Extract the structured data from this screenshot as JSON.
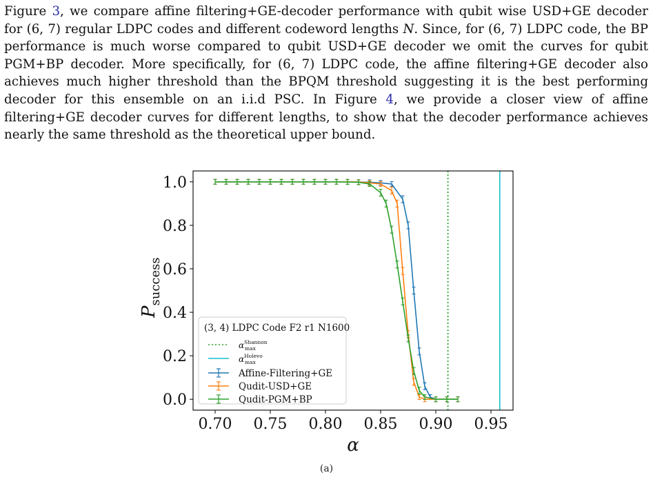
{
  "paragraph": {
    "p1": "Figure ",
    "ref1": "3",
    "p2": ", we compare affine filtering+GE-decoder performance with qubit wise USD+GE decoder for (6, 7) regular LDPC codes and different codeword lengths ",
    "N": "N",
    "p3": ". Since, for (6, 7) LDPC code, the BP performance is much worse compared to qubit USD+GE decoder we omit the curves for qubit PGM+BP decoder. More specifically, for (6, 7) LDPC code, the affine filtering+GE decoder also achieves much higher threshold than the BPQM threshold suggesting it is the best performing decoder for this ensemble on an i.i.d PSC. In Figure ",
    "ref2": "4",
    "p4": ", we provide a closer view of affine filtering+GE decoder curves for different lengths, to show that the decoder performance achieves nearly the same threshold as the theoretical upper bound."
  },
  "chart_data": {
    "type": "line",
    "xlabel": "α",
    "ylabel": "P",
    "ylabel_sub": "success",
    "xlim": [
      0.68,
      0.97
    ],
    "ylim": [
      -0.05,
      1.05
    ],
    "xticks": [
      0.7,
      0.75,
      0.8,
      0.85,
      0.9,
      0.95
    ],
    "xtick_labels": [
      "0.70",
      "0.75",
      "0.80",
      "0.85",
      "0.90",
      "0.95"
    ],
    "yticks": [
      0.0,
      0.2,
      0.4,
      0.6,
      0.8,
      1.0
    ],
    "ytick_labels": [
      "0.0",
      "0.2",
      "0.4",
      "0.6",
      "0.8",
      "1.0"
    ],
    "grid": false,
    "legend_title": "(3, 4) LDPC Code F2 r1 N1600",
    "legend_position": "lower-left",
    "vlines": [
      {
        "name": "α",
        "sup": "Shannon",
        "sub": "max",
        "x": 0.911,
        "color": "#2ca02c",
        "style": "dotted"
      },
      {
        "name": "α",
        "sup": "Holevo",
        "sub": "max",
        "x": 0.958,
        "color": "#17becf",
        "style": "solid"
      }
    ],
    "series": [
      {
        "name": "Affine-Filtering+GE",
        "color": "#1f77b4",
        "x": [
          0.7,
          0.71,
          0.72,
          0.73,
          0.74,
          0.75,
          0.76,
          0.77,
          0.78,
          0.79,
          0.8,
          0.81,
          0.82,
          0.83,
          0.84,
          0.85,
          0.86,
          0.87,
          0.875,
          0.88,
          0.885,
          0.89,
          0.895,
          0.9,
          0.91,
          0.92
        ],
        "y": [
          1.0,
          1.0,
          1.0,
          1.0,
          1.0,
          1.0,
          1.0,
          1.0,
          1.0,
          1.0,
          1.0,
          1.0,
          1.0,
          0.999,
          0.998,
          0.995,
          0.99,
          0.92,
          0.8,
          0.5,
          0.22,
          0.06,
          0.01,
          0.0,
          0.0,
          0.0
        ]
      },
      {
        "name": "Qudit-USD+GE",
        "color": "#ff7f0e",
        "x": [
          0.7,
          0.71,
          0.72,
          0.73,
          0.74,
          0.75,
          0.76,
          0.77,
          0.78,
          0.79,
          0.8,
          0.81,
          0.82,
          0.83,
          0.84,
          0.85,
          0.86,
          0.865,
          0.87,
          0.875,
          0.88,
          0.885,
          0.89,
          0.9,
          0.91,
          0.92
        ],
        "y": [
          1.0,
          1.0,
          1.0,
          1.0,
          1.0,
          1.0,
          1.0,
          1.0,
          1.0,
          1.0,
          1.0,
          1.0,
          1.0,
          0.999,
          0.995,
          0.99,
          0.96,
          0.9,
          0.59,
          0.3,
          0.08,
          0.01,
          0.0,
          0.0,
          0.0,
          0.0
        ]
      },
      {
        "name": "Qudit-PGM+BP",
        "color": "#2ca02c",
        "x": [
          0.7,
          0.71,
          0.72,
          0.73,
          0.74,
          0.75,
          0.76,
          0.77,
          0.78,
          0.79,
          0.8,
          0.81,
          0.82,
          0.83,
          0.84,
          0.85,
          0.855,
          0.86,
          0.865,
          0.87,
          0.875,
          0.88,
          0.885,
          0.89,
          0.9,
          0.91,
          0.92
        ],
        "y": [
          1.0,
          1.0,
          1.0,
          1.0,
          1.0,
          1.0,
          1.0,
          1.0,
          1.0,
          1.0,
          1.0,
          1.0,
          0.999,
          0.998,
          0.99,
          0.95,
          0.9,
          0.78,
          0.62,
          0.45,
          0.28,
          0.13,
          0.04,
          0.01,
          0.0,
          0.0,
          0.0
        ]
      }
    ]
  },
  "caption": "(a)"
}
